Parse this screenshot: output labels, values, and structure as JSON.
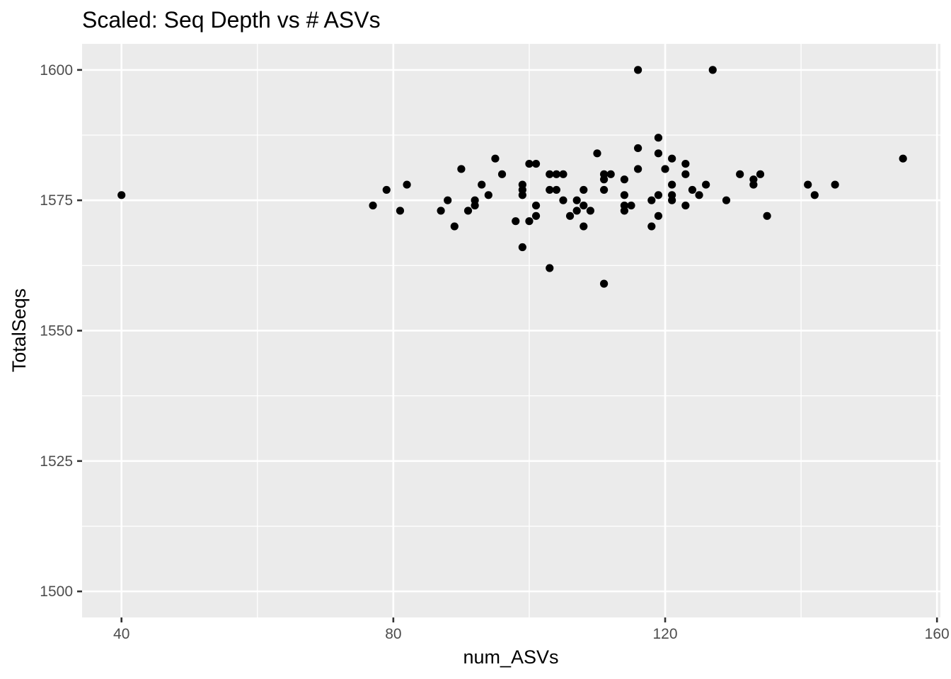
{
  "chart_data": {
    "type": "scatter",
    "title": "Scaled: Seq Depth vs # ASVs",
    "xlabel": "num_ASVs",
    "ylabel": "TotalSeqs",
    "xlim": [
      34.2,
      160.5
    ],
    "ylim": [
      1495,
      1605
    ],
    "xticks": [
      40,
      80,
      120,
      160
    ],
    "yticks": [
      1500,
      1525,
      1550,
      1575,
      1600
    ],
    "xminor": [
      60,
      100,
      140
    ],
    "yminor": [
      1512.5,
      1537.5,
      1562.5,
      1587.5
    ],
    "grid": true,
    "background": "#ebebeb",
    "point_color": "#000000",
    "points": [
      [
        40,
        1576
      ],
      [
        77,
        1574
      ],
      [
        79,
        1577
      ],
      [
        81,
        1573
      ],
      [
        82,
        1578
      ],
      [
        87,
        1573
      ],
      [
        88,
        1575
      ],
      [
        89,
        1570
      ],
      [
        90,
        1581
      ],
      [
        91,
        1573
      ],
      [
        92,
        1575
      ],
      [
        92,
        1574
      ],
      [
        93,
        1578
      ],
      [
        94,
        1576
      ],
      [
        95,
        1583
      ],
      [
        96,
        1580
      ],
      [
        98,
        1571
      ],
      [
        99,
        1566
      ],
      [
        99,
        1578
      ],
      [
        99,
        1577
      ],
      [
        99,
        1576
      ],
      [
        100,
        1571
      ],
      [
        100,
        1582
      ],
      [
        101,
        1582
      ],
      [
        101,
        1574
      ],
      [
        101,
        1572
      ],
      [
        103,
        1562
      ],
      [
        103,
        1580
      ],
      [
        103,
        1577
      ],
      [
        104,
        1580
      ],
      [
        104,
        1577
      ],
      [
        105,
        1580
      ],
      [
        105,
        1575
      ],
      [
        106,
        1572
      ],
      [
        107,
        1575
      ],
      [
        107,
        1573
      ],
      [
        108,
        1577
      ],
      [
        108,
        1574
      ],
      [
        108,
        1570
      ],
      [
        109,
        1573
      ],
      [
        110,
        1584
      ],
      [
        111,
        1580
      ],
      [
        111,
        1579
      ],
      [
        111,
        1577
      ],
      [
        111,
        1559
      ],
      [
        112,
        1580
      ],
      [
        114,
        1579
      ],
      [
        114,
        1576
      ],
      [
        114,
        1574
      ],
      [
        114,
        1573
      ],
      [
        115,
        1574
      ],
      [
        116,
        1600
      ],
      [
        116,
        1585
      ],
      [
        116,
        1581
      ],
      [
        118,
        1575
      ],
      [
        118,
        1570
      ],
      [
        119,
        1587
      ],
      [
        119,
        1584
      ],
      [
        119,
        1576
      ],
      [
        119,
        1572
      ],
      [
        120,
        1581
      ],
      [
        121,
        1583
      ],
      [
        121,
        1578
      ],
      [
        121,
        1576
      ],
      [
        121,
        1575
      ],
      [
        123,
        1582
      ],
      [
        123,
        1580
      ],
      [
        123,
        1574
      ],
      [
        124,
        1577
      ],
      [
        125,
        1576
      ],
      [
        126,
        1578
      ],
      [
        127,
        1600
      ],
      [
        129,
        1575
      ],
      [
        131,
        1580
      ],
      [
        133,
        1579
      ],
      [
        133,
        1578
      ],
      [
        134,
        1580
      ],
      [
        135,
        1572
      ],
      [
        141,
        1578
      ],
      [
        142,
        1576
      ],
      [
        145,
        1578
      ],
      [
        155,
        1583
      ]
    ]
  }
}
